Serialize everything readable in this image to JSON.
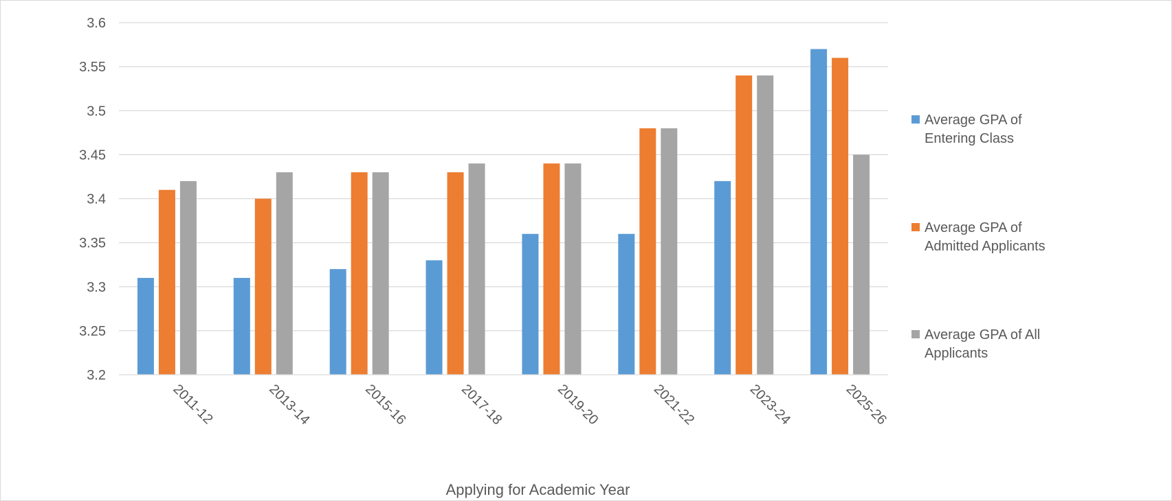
{
  "chart_data": {
    "type": "bar",
    "title": "",
    "xlabel": "Applying for Academic Year",
    "ylabel": "",
    "categories": [
      "2011-12",
      "2013-14",
      "2015-16",
      "2017-18",
      "2019-20",
      "2021-22",
      "2023-24",
      "2025-26"
    ],
    "series": [
      {
        "name": "Average GPA of Entering Class",
        "legend_lines": [
          "Average GPA of",
          "Entering Class"
        ],
        "color": "#5b9bd5",
        "values": [
          3.31,
          3.31,
          3.32,
          3.33,
          3.36,
          3.36,
          3.42,
          3.57
        ]
      },
      {
        "name": "Average GPA of Admitted Applicants",
        "legend_lines": [
          "Average GPA of",
          "Admitted Applicants"
        ],
        "color": "#ed7d31",
        "values": [
          3.41,
          3.4,
          3.43,
          3.43,
          3.44,
          3.48,
          3.54,
          3.56
        ]
      },
      {
        "name": "Average GPA of All Applicants",
        "legend_lines": [
          "Average GPA of All",
          "Applicants"
        ],
        "color": "#a5a5a5",
        "values": [
          3.42,
          3.43,
          3.43,
          3.44,
          3.44,
          3.48,
          3.54,
          3.45
        ]
      }
    ],
    "ylim": [
      3.2,
      3.6
    ],
    "yticks": [
      "3.2",
      "3.25",
      "3.3",
      "3.35",
      "3.4",
      "3.45",
      "3.5",
      "3.55",
      "3.6"
    ],
    "grid": true,
    "legend_position": "right",
    "gridline_color": "#d9d9d9",
    "label_color": "#595959"
  }
}
